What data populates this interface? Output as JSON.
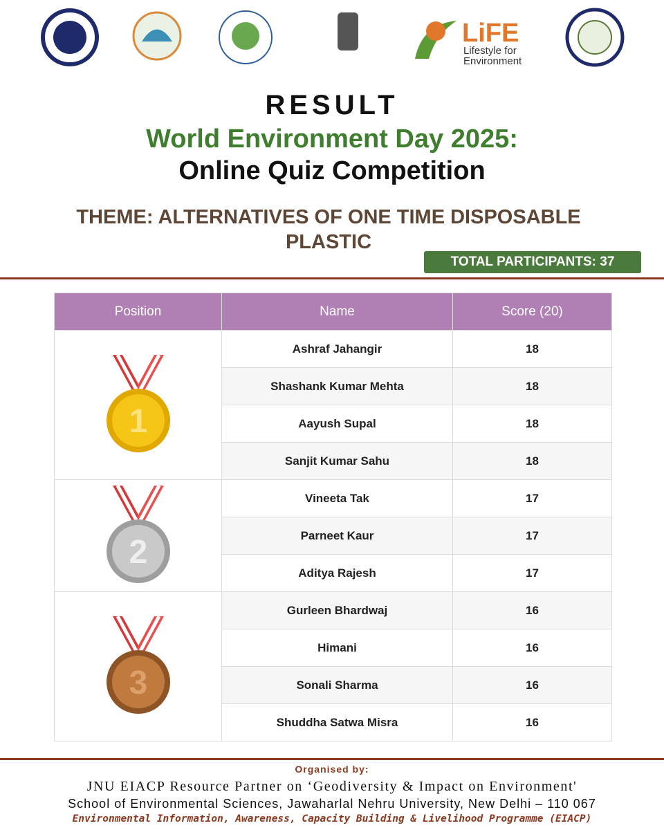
{
  "life_logo": {
    "name": "LiFE",
    "tagline": [
      "Lifestyle for",
      "Environment"
    ]
  },
  "title": {
    "heading": "RESULT",
    "event": "World Environment Day 2025:",
    "competition": "Online Quiz Competition",
    "theme": "THEME: ALTERNATIVES OF ONE TIME DISPOSABLE PLASTIC",
    "participants": "TOTAL PARTICIPANTS: 37"
  },
  "table": {
    "columns": [
      "Position",
      "Name",
      "Score (20)"
    ],
    "groups": [
      {
        "position": "1",
        "rows": [
          [
            "Ashraf Jahangir",
            18
          ],
          [
            "Shashank Kumar Mehta",
            18
          ],
          [
            "Aayush Supal",
            18
          ],
          [
            "Sanjit Kumar Sahu",
            18
          ]
        ]
      },
      {
        "position": "2",
        "rows": [
          [
            "Vineeta Tak",
            17
          ],
          [
            "Parneet Kaur",
            17
          ],
          [
            "Aditya Rajesh",
            17
          ]
        ]
      },
      {
        "position": "3",
        "rows": [
          [
            "Gurleen Bhardwaj",
            16
          ],
          [
            "Himani",
            16
          ],
          [
            "Sonali Sharma",
            16
          ],
          [
            "Shuddha Satwa Misra",
            16
          ]
        ]
      }
    ]
  },
  "footer": {
    "organised": "Organised by:",
    "partner": "JNU EIACP Resource Partner on ‘Geodiversity & Impact on Environment'",
    "school": "School of Environmental Sciences, Jawaharlal Nehru University, New Delhi – 110 067",
    "programme": "Environmental Information, Awareness, Capacity Building & Livelihood Programme (EIACP)"
  }
}
